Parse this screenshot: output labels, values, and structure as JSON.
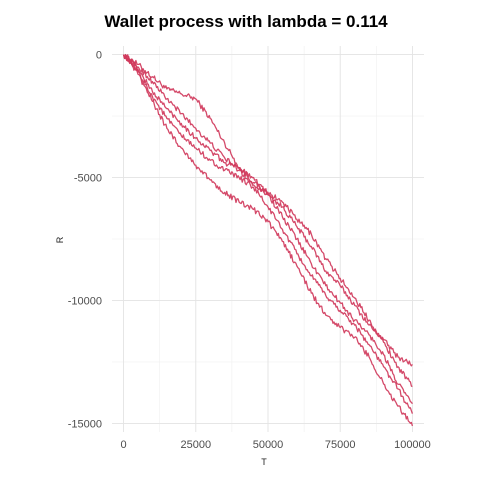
{
  "chart_data": {
    "type": "line",
    "title": "Wallet process with lambda =  0.114",
    "xlabel": "T",
    "ylabel": "R",
    "xlim": [
      -4000,
      104000
    ],
    "ylim": [
      -15350,
      350
    ],
    "xticks": [
      0,
      25000,
      50000,
      75000,
      100000
    ],
    "xtick_labels": [
      "0",
      "25000",
      "50000",
      "75000",
      "100000"
    ],
    "yticks": [
      0,
      -5000,
      -10000,
      -15000
    ],
    "ytick_labels": [
      "0",
      "-5000",
      "-10000",
      "-15000"
    ],
    "grid": true,
    "legend": "none",
    "line_color": "#d03a5c",
    "series": [
      {
        "x": [
          0,
          5000,
          10000,
          15000,
          20000,
          25000,
          30000,
          35000,
          40000,
          45000,
          50000,
          55000,
          60000,
          65000,
          70000,
          75000,
          80000,
          85000,
          90000,
          95000,
          100000
        ],
        "values": [
          0,
          -400,
          -900,
          -1400,
          -1600,
          -1800,
          -2600,
          -3600,
          -4600,
          -5200,
          -5700,
          -6200,
          -7000,
          -7800,
          -8800,
          -9400,
          -10200,
          -11000,
          -11600,
          -12300,
          -12600
        ]
      },
      {
        "x": [
          0,
          5000,
          10000,
          15000,
          20000,
          25000,
          30000,
          35000,
          40000,
          45000,
          50000,
          55000,
          60000,
          65000,
          70000,
          75000,
          80000,
          85000,
          90000,
          95000,
          100000
        ],
        "values": [
          0,
          -500,
          -1100,
          -1800,
          -2400,
          -3000,
          -3600,
          -4200,
          -4700,
          -5300,
          -5600,
          -6000,
          -6700,
          -7300,
          -8300,
          -9100,
          -9900,
          -10800,
          -11700,
          -12700,
          -13500
        ]
      },
      {
        "x": [
          0,
          5000,
          10000,
          15000,
          20000,
          25000,
          30000,
          35000,
          40000,
          45000,
          50000,
          55000,
          60000,
          65000,
          70000,
          75000,
          80000,
          85000,
          90000,
          95000,
          100000
        ],
        "values": [
          0,
          -600,
          -1500,
          -2200,
          -2800,
          -3400,
          -3900,
          -4400,
          -4600,
          -5000,
          -5700,
          -6600,
          -7500,
          -8500,
          -9400,
          -10100,
          -10800,
          -11400,
          -12200,
          -13400,
          -14200
        ]
      },
      {
        "x": [
          0,
          5000,
          10000,
          15000,
          20000,
          25000,
          30000,
          35000,
          40000,
          45000,
          50000,
          55000,
          60000,
          65000,
          70000,
          75000,
          80000,
          85000,
          90000,
          95000,
          100000
        ],
        "values": [
          0,
          -700,
          -1700,
          -2600,
          -3300,
          -3800,
          -4300,
          -4700,
          -5000,
          -5400,
          -6200,
          -7100,
          -8100,
          -9000,
          -9800,
          -10400,
          -11000,
          -11800,
          -12700,
          -13600,
          -14600
        ]
      },
      {
        "x": [
          0,
          5000,
          10000,
          15000,
          20000,
          25000,
          30000,
          35000,
          40000,
          45000,
          50000,
          55000,
          60000,
          65000,
          70000,
          75000,
          80000,
          85000,
          90000,
          95000,
          100000
        ],
        "values": [
          0,
          -800,
          -1900,
          -3000,
          -3800,
          -4500,
          -5100,
          -5600,
          -6000,
          -6300,
          -6800,
          -7600,
          -8600,
          -9700,
          -10600,
          -11100,
          -11500,
          -12300,
          -13400,
          -14300,
          -15100
        ]
      }
    ]
  }
}
